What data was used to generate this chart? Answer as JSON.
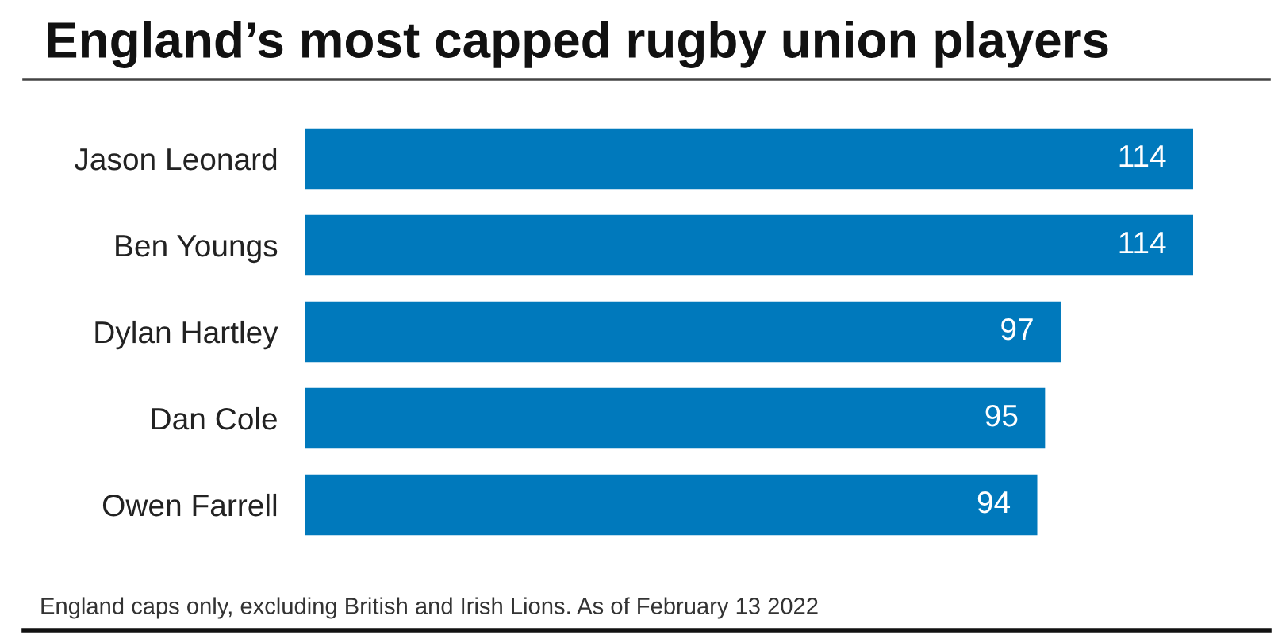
{
  "chart_data": {
    "type": "bar",
    "orientation": "horizontal",
    "title": "England’s most capped rugby union players",
    "categories": [
      "Jason Leonard",
      "Ben Youngs",
      "Dylan Hartley",
      "Dan Cole",
      "Owen Farrell"
    ],
    "values": [
      114,
      114,
      97,
      95,
      94
    ],
    "color": "#0079bc",
    "xlim": [
      0,
      114
    ],
    "data_labels": true,
    "tick_labels": "y",
    "annotations": [
      "England caps only, excluding British and Irish Lions. As of February 13 2022"
    ]
  }
}
